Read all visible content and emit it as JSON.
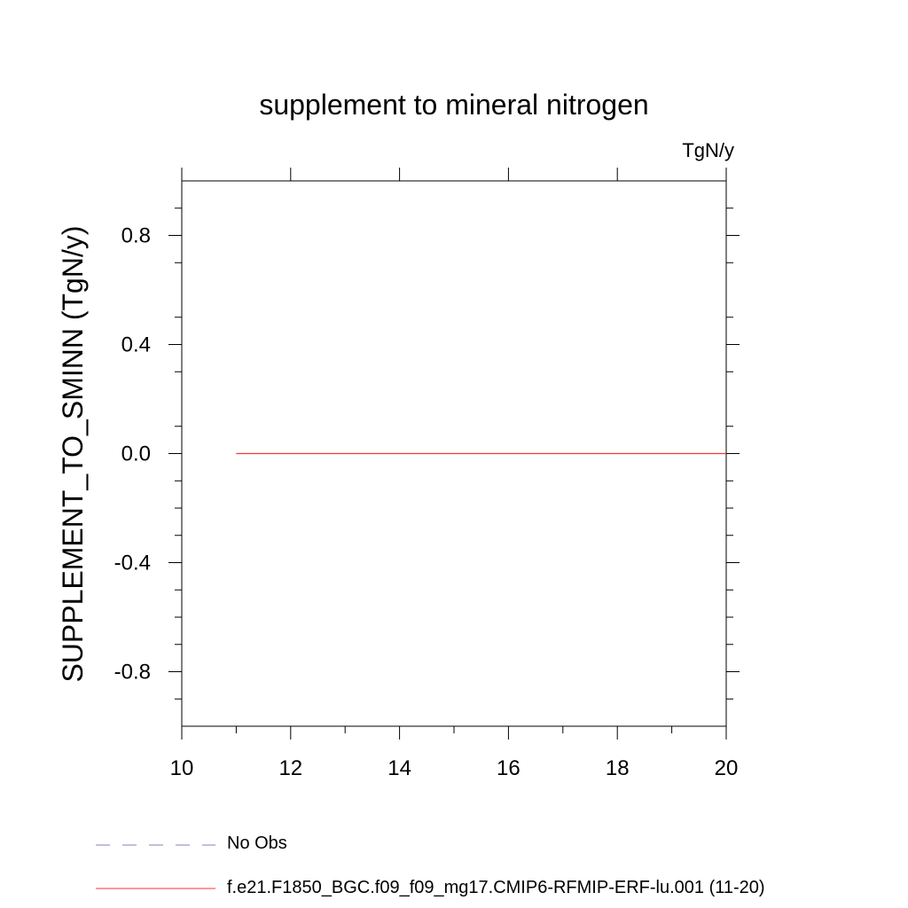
{
  "chart_data": {
    "type": "line",
    "title": "supplement to mineral nitrogen",
    "units": "TgN/y",
    "ylabel": "SUPPLEMENT_TO_SMINN  (TgN/y)",
    "xlabel": "",
    "xlim": [
      10,
      20
    ],
    "ylim": [
      -1.0,
      1.0
    ],
    "x_ticks": [
      10,
      12,
      14,
      16,
      18,
      20
    ],
    "x_tick_labels": [
      "10",
      "12",
      "14",
      "16",
      "18",
      "20"
    ],
    "y_ticks": [
      -0.8,
      -0.4,
      0.0,
      0.4,
      0.8
    ],
    "y_tick_labels": [
      "-0.8",
      "-0.4",
      "0.0",
      "0.4",
      "0.8"
    ],
    "grid": false,
    "legend_position": "bottom-left",
    "series": [
      {
        "name": "No Obs",
        "color": "#8a7fc0",
        "dash": "dashed",
        "x": [],
        "y": []
      },
      {
        "name": "f.e21.F1850_BGC.f09_f09_mg17.CMIP6-RFMIP-ERF-lu.001 (11-20)",
        "color": "#ff3030",
        "dash": "solid",
        "x": [
          11,
          12,
          13,
          14,
          15,
          16,
          17,
          18,
          19,
          20
        ],
        "y": [
          0,
          0,
          0,
          0,
          0,
          0,
          0,
          0,
          0,
          0
        ]
      }
    ]
  }
}
